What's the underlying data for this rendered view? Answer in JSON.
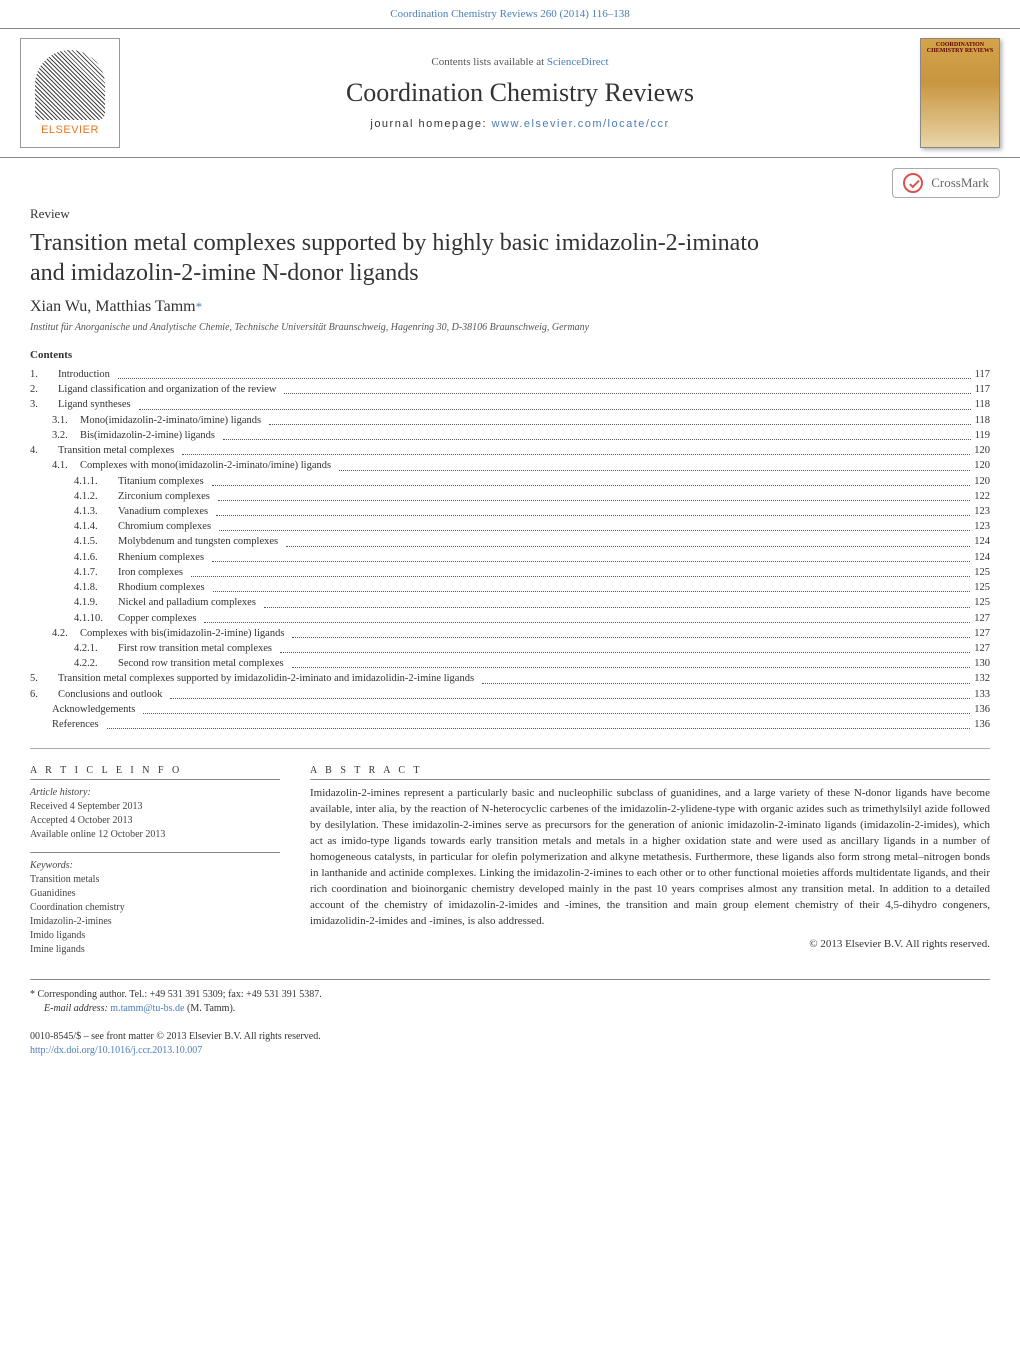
{
  "citation_link": "Coordination Chemistry Reviews 260 (2014) 116–138",
  "header": {
    "contents_prefix": "Contents lists available at ",
    "contents_link": "ScienceDirect",
    "journal_title": "Coordination Chemistry Reviews",
    "homepage_prefix": "journal homepage: ",
    "homepage_link": "www.elsevier.com/locate/ccr",
    "publisher_name": "ELSEVIER",
    "cover_title": "COORDINATION CHEMISTRY REVIEWS"
  },
  "crossmark_label": "CrossMark",
  "article": {
    "type_label": "Review",
    "title": "Transition metal complexes supported by highly basic imidazolin-2-iminato and imidazolin-2-imine N-donor ligands",
    "authors": "Xian Wu, Matthias Tamm",
    "corresp_symbol": "*",
    "affiliation": "Institut für Anorganische und Analytische Chemie, Technische Universität Braunschweig, Hagenring 30, D-38106 Braunschweig, Germany"
  },
  "contents_heading": "Contents",
  "toc": [
    {
      "num": "1.",
      "label": "Introduction",
      "page": "117",
      "indent": 0
    },
    {
      "num": "2.",
      "label": "Ligand classification and organization of the review",
      "page": "117",
      "indent": 0
    },
    {
      "num": "3.",
      "label": "Ligand syntheses",
      "page": "118",
      "indent": 0
    },
    {
      "num": "3.1.",
      "label": "Mono(imidazolin-2-iminato/imine) ligands",
      "page": "118",
      "indent": 1
    },
    {
      "num": "3.2.",
      "label": "Bis(imidazolin-2-imine) ligands",
      "page": "119",
      "indent": 1
    },
    {
      "num": "4.",
      "label": "Transition metal complexes",
      "page": "120",
      "indent": 0
    },
    {
      "num": "4.1.",
      "label": "Complexes with mono(imidazolin-2-iminato/imine) ligands",
      "page": "120",
      "indent": 1
    },
    {
      "num": "4.1.1.",
      "label": "Titanium complexes",
      "page": "120",
      "indent": 2
    },
    {
      "num": "4.1.2.",
      "label": "Zirconium complexes",
      "page": "122",
      "indent": 2
    },
    {
      "num": "4.1.3.",
      "label": "Vanadium complexes",
      "page": "123",
      "indent": 2
    },
    {
      "num": "4.1.4.",
      "label": "Chromium complexes",
      "page": "123",
      "indent": 2
    },
    {
      "num": "4.1.5.",
      "label": "Molybdenum and tungsten complexes",
      "page": "124",
      "indent": 2
    },
    {
      "num": "4.1.6.",
      "label": "Rhenium complexes",
      "page": "124",
      "indent": 2
    },
    {
      "num": "4.1.7.",
      "label": "Iron complexes",
      "page": "125",
      "indent": 2
    },
    {
      "num": "4.1.8.",
      "label": "Rhodium complexes",
      "page": "125",
      "indent": 2
    },
    {
      "num": "4.1.9.",
      "label": "Nickel and palladium complexes",
      "page": "125",
      "indent": 2
    },
    {
      "num": "4.1.10.",
      "label": "Copper complexes",
      "page": "127",
      "indent": 2
    },
    {
      "num": "4.2.",
      "label": "Complexes with bis(imidazolin-2-imine) ligands",
      "page": "127",
      "indent": 1
    },
    {
      "num": "4.2.1.",
      "label": "First row transition metal complexes",
      "page": "127",
      "indent": 2
    },
    {
      "num": "4.2.2.",
      "label": "Second row transition metal complexes",
      "page": "130",
      "indent": 2
    },
    {
      "num": "5.",
      "label": "Transition metal complexes supported by imidazolidin-2-iminato and imidazolidin-2-imine ligands",
      "page": "132",
      "indent": 0
    },
    {
      "num": "6.",
      "label": "Conclusions and outlook",
      "page": "133",
      "indent": 0
    },
    {
      "num": "",
      "label": "Acknowledgements",
      "page": "136",
      "indent": 1
    },
    {
      "num": "",
      "label": "References",
      "page": "136",
      "indent": 1
    }
  ],
  "info_heading": "A R T I C L E   I N F O",
  "abstract_heading": "A B S T R A C T",
  "history": {
    "label": "Article history:",
    "received": "Received 4 September 2013",
    "accepted": "Accepted 4 October 2013",
    "online": "Available online 12 October 2013"
  },
  "keywords": {
    "label": "Keywords:",
    "items": [
      "Transition metals",
      "Guanidines",
      "Coordination chemistry",
      "Imidazolin-2-imines",
      "Imido ligands",
      "Imine ligands"
    ]
  },
  "abstract_text": "Imidazolin-2-imines represent a particularly basic and nucleophilic subclass of guanidines, and a large variety of these N-donor ligands have become available, inter alia, by the reaction of N-heterocyclic carbenes of the imidazolin-2-ylidene-type with organic azides such as trimethylsilyl azide followed by desilylation. These imidazolin-2-imines serve as precursors for the generation of anionic imidazolin-2-iminato ligands (imidazolin-2-imides), which act as imido-type ligands towards early transition metals and metals in a higher oxidation state and were used as ancillary ligands in a number of homogeneous catalysts, in particular for olefin polymerization and alkyne metathesis. Furthermore, these ligands also form strong metal–nitrogen bonds in lanthanide and actinide complexes. Linking the imidazolin-2-imines to each other or to other functional moieties affords multidentate ligands, and their rich coordination and bioinorganic chemistry developed mainly in the past 10 years comprises almost any transition metal. In addition to a detailed account of the chemistry of imidazolin-2-imides and -imines, the transition and main group element chemistry of their 4,5-dihydro congeners, imidazolidin-2-imides and -imines, is also addressed.",
  "copyright": "© 2013 Elsevier B.V. All rights reserved.",
  "footer": {
    "corresp": "* Corresponding author. Tel.: +49 531 391 5309; fax: +49 531 391 5387.",
    "email_label": "E-mail address: ",
    "email": "m.tamm@tu-bs.de",
    "email_author": " (M. Tamm).",
    "issn": "0010-8545/$ – see front matter © 2013 Elsevier B.V. All rights reserved.",
    "doi": "http://dx.doi.org/10.1016/j.ccr.2013.10.007"
  },
  "colors": {
    "link": "#4a7db8",
    "text": "#333333",
    "muted": "#555555",
    "border": "#888888",
    "orange": "#e87722",
    "crossmark_red": "#d9534f",
    "cover_top": "#d4a34a",
    "cover_bottom": "#e8d5a8"
  },
  "typography": {
    "journal_title_pt": 26,
    "article_title_pt": 24,
    "authors_pt": 16,
    "body_pt": 11,
    "toc_pt": 10.5,
    "small_pt": 10
  }
}
